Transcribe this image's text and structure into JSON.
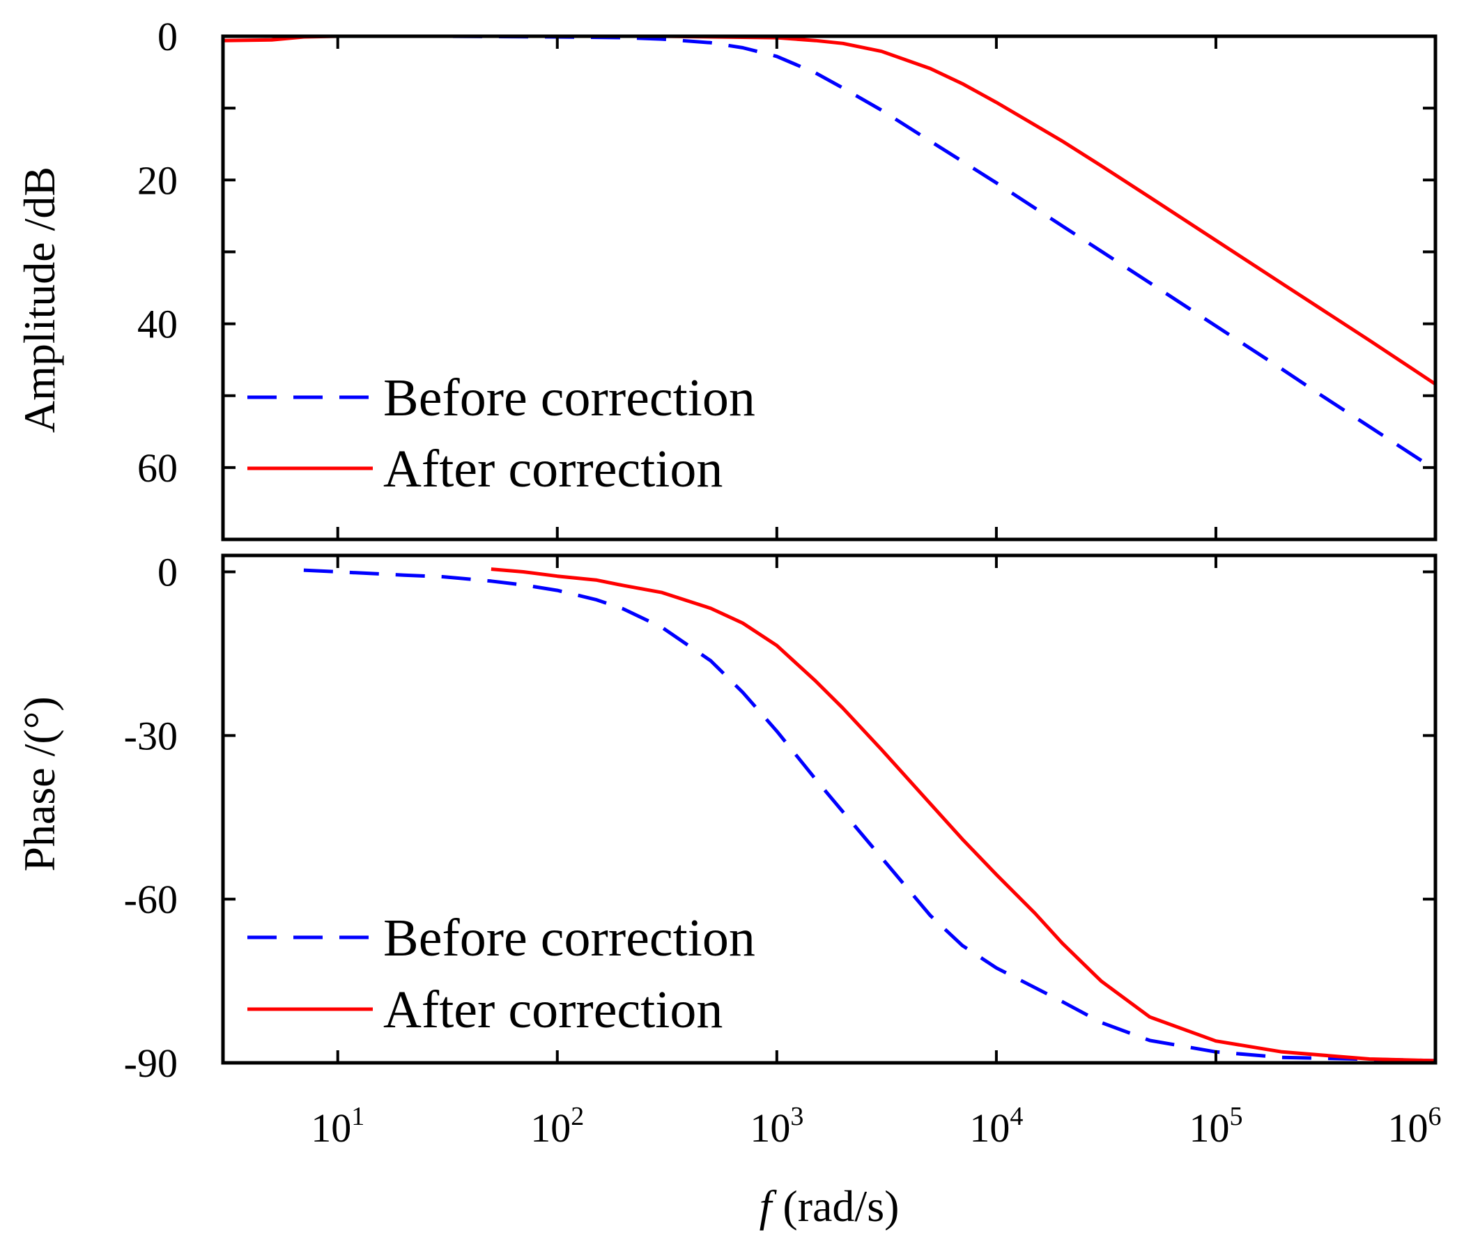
{
  "chart_data": [
    {
      "type": "line",
      "ylabel": "Amplitude /dB",
      "xscale": "log",
      "xlim": [
        3.0,
        1000000
      ],
      "ylim": [
        70,
        0
      ],
      "yticks": [
        {
          "value": 0,
          "label": "0"
        },
        {
          "value": 10,
          "label": ""
        },
        {
          "value": 20,
          "label": "20"
        },
        {
          "value": 30,
          "label": ""
        },
        {
          "value": 40,
          "label": "40"
        },
        {
          "value": 50,
          "label": ""
        },
        {
          "value": 60,
          "label": "60"
        }
      ],
      "legend_position": "bottom-left",
      "series": [
        {
          "name": "Before correction",
          "color": "#0000ff",
          "style": "dashed",
          "x": [
            3,
            10,
            30,
            100,
            200,
            300,
            500,
            700,
            1000,
            1500,
            2000,
            3000,
            5000,
            7000,
            10000,
            20000,
            30000,
            50000,
            100000,
            200000,
            300000,
            500000,
            1000000
          ],
          "y": [
            0,
            0,
            0,
            0.1,
            0.2,
            0.4,
            0.9,
            1.6,
            2.8,
            5.1,
            7.2,
            10.3,
            14.6,
            17.4,
            20.4,
            26.4,
            29.9,
            34.3,
            40.3,
            46.3,
            49.9,
            54.3,
            60.3
          ]
        },
        {
          "name": "After correction",
          "color": "#ff0000",
          "style": "solid",
          "x": [
            3,
            5,
            7,
            10,
            30,
            100,
            300,
            1000,
            1500,
            2000,
            3000,
            5000,
            7000,
            10000,
            20000,
            30000,
            50000,
            100000,
            200000,
            300000,
            500000,
            1000000
          ],
          "y": [
            0.6,
            0.5,
            0.1,
            0,
            0,
            0,
            0,
            0.2,
            0.6,
            1.0,
            2.1,
            4.5,
            6.6,
            9.2,
            14.6,
            18.0,
            22.4,
            28.4,
            34.4,
            37.9,
            42.3,
            48.4
          ]
        }
      ]
    },
    {
      "type": "line",
      "xlabel_var": "f",
      "xlabel": "(rad/s)",
      "ylabel": "Phase /(°)",
      "xscale": "log",
      "xlim": [
        3.0,
        1000000
      ],
      "ylim": [
        -90,
        3
      ],
      "xticks": [
        {
          "value": 10,
          "base": "10",
          "exp": "1"
        },
        {
          "value": 100,
          "base": "10",
          "exp": "2"
        },
        {
          "value": 1000,
          "base": "10",
          "exp": "3"
        },
        {
          "value": 10000,
          "base": "10",
          "exp": "4"
        },
        {
          "value": 100000,
          "base": "10",
          "exp": "5"
        },
        {
          "value": 1000000,
          "base": "10",
          "exp": "6"
        }
      ],
      "yticks": [
        {
          "value": 0,
          "label": "0"
        },
        {
          "value": -30,
          "label": "-30"
        },
        {
          "value": -60,
          "label": "-60"
        },
        {
          "value": -90,
          "label": "-90"
        }
      ],
      "legend_position": "bottom-left",
      "series": [
        {
          "name": "Before correction",
          "color": "#0000ff",
          "style": "dashed",
          "x": [
            7,
            10,
            20,
            30,
            50,
            70,
            100,
            150,
            200,
            300,
            500,
            700,
            1000,
            1500,
            2000,
            3000,
            5000,
            7000,
            10000,
            20000,
            30000,
            50000,
            100000,
            200000,
            1000000
          ],
          "y": [
            0.3,
            0,
            -0.6,
            -0.9,
            -1.7,
            -2.4,
            -3.4,
            -5.1,
            -6.8,
            -10.2,
            -16.3,
            -22.1,
            -29.2,
            -38.0,
            -44.0,
            -52.4,
            -63.0,
            -68.5,
            -72.6,
            -78.8,
            -82.6,
            -85.9,
            -88.0,
            -89.0,
            -89.6
          ]
        },
        {
          "name": "After correction",
          "color": "#ff0000",
          "style": "solid",
          "x": [
            50,
            70,
            100,
            150,
            200,
            300,
            500,
            700,
            1000,
            1500,
            2000,
            3000,
            5000,
            7000,
            10000,
            15000,
            20000,
            30000,
            50000,
            100000,
            200000,
            500000,
            1000000
          ],
          "y": [
            0.5,
            0,
            -0.8,
            -1.5,
            -2.5,
            -3.8,
            -6.7,
            -9.4,
            -13.5,
            -20.0,
            -25.0,
            -32.6,
            -42.5,
            -49.0,
            -55.5,
            -62.6,
            -68.1,
            -75.0,
            -81.6,
            -86.0,
            -88.0,
            -89.3,
            -89.6
          ]
        }
      ]
    }
  ]
}
